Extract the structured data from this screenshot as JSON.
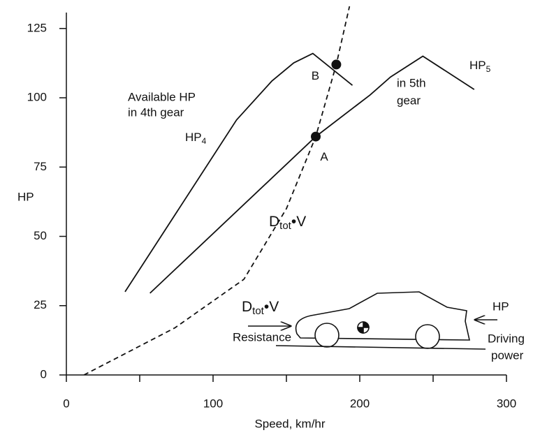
{
  "chart_data": {
    "type": "line",
    "xlabel": "Speed, km/hr",
    "ylabel": "HP",
    "xlim": [
      0,
      300
    ],
    "ylim": [
      0,
      132
    ],
    "xticks": [
      0,
      100,
      200,
      300
    ],
    "xticks_minor": [
      50,
      150,
      250
    ],
    "yticks": [
      0,
      25,
      50,
      75,
      100,
      125
    ],
    "series": [
      {
        "name": "HP4",
        "color": "#111111",
        "dashed": false,
        "x": [
          40,
          116,
          140,
          155,
          168,
          195
        ],
        "values": [
          30,
          92,
          106,
          112.6,
          116,
          104.5
        ]
      },
      {
        "name": "HP5",
        "color": "#111111",
        "dashed": false,
        "x": [
          57,
          170,
          207,
          221,
          243,
          278
        ],
        "values": [
          29.5,
          86,
          101,
          107.5,
          115,
          103
        ]
      },
      {
        "name": "Dtot V",
        "color": "#111111",
        "dashed": true,
        "x": [
          12,
          74,
          121,
          150,
          170,
          184,
          193
        ],
        "values": [
          0,
          17,
          34.5,
          60,
          86,
          112,
          133
        ]
      }
    ],
    "points": [
      {
        "label": "A",
        "x": 170,
        "y": 86
      },
      {
        "label": "B",
        "x": 184,
        "y": 112
      }
    ],
    "annotations": {
      "hp4": {
        "text": "HP",
        "sub": "4"
      },
      "hp5": {
        "text": "HP",
        "sub": "5"
      },
      "avail1": "Available HP",
      "avail2": "in 4th gear",
      "gear5a": "in 5th",
      "gear5b": "gear",
      "dtot": {
        "text": "D",
        "sub": "tot",
        "suffix": "•V"
      },
      "car_dtot": {
        "text": "D",
        "sub": "tot",
        "suffix": "•V"
      },
      "resistance": "Resistance",
      "car_hp": "HP",
      "driving1": "Driving",
      "driving2": "power"
    }
  }
}
